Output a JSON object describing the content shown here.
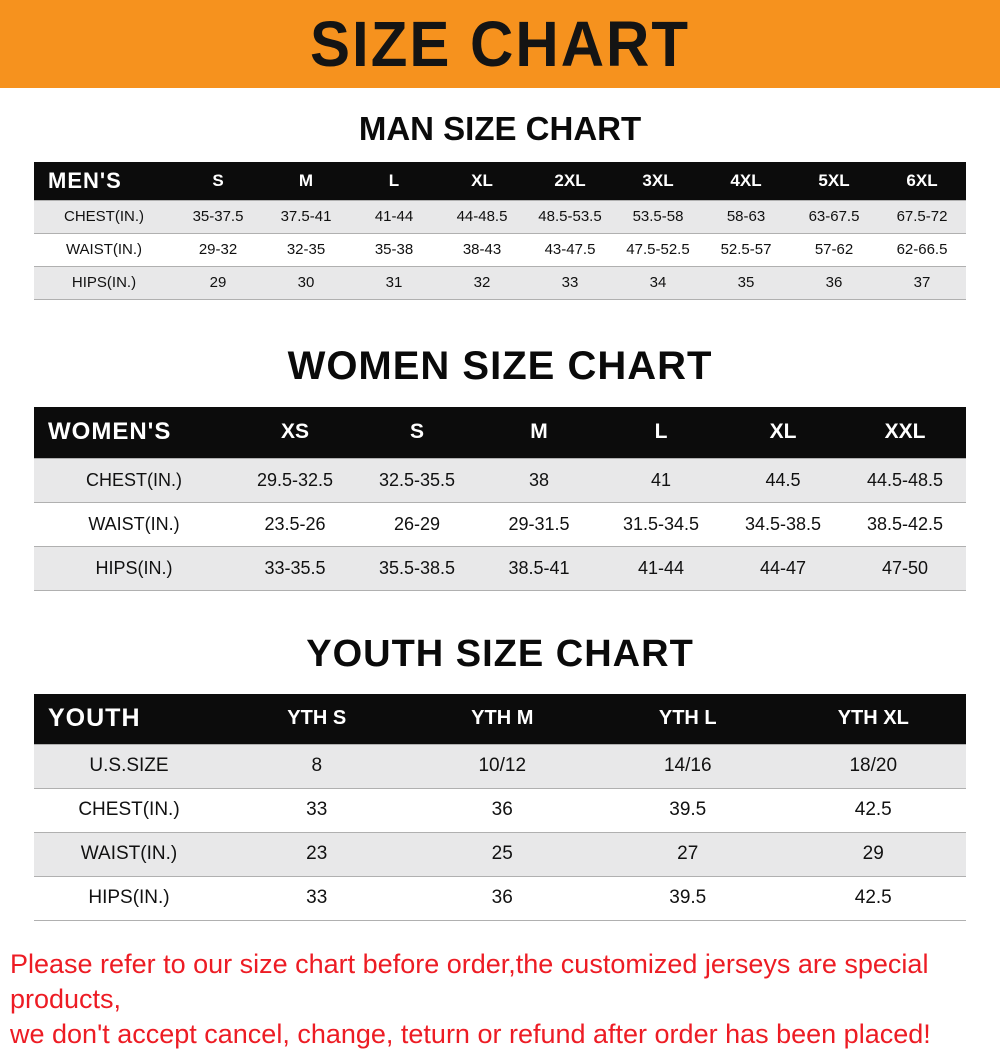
{
  "banner": {
    "title": "SIZE CHART",
    "bg_color": "#F6921E"
  },
  "chart_data": [
    {
      "type": "table",
      "title": "MAN SIZE CHART",
      "corner_label": "MEN'S",
      "columns": [
        "S",
        "M",
        "L",
        "XL",
        "2XL",
        "3XL",
        "4XL",
        "5XL",
        "6XL"
      ],
      "rows": [
        {
          "label": "CHEST(IN.)",
          "values": [
            "35-37.5",
            "37.5-41",
            "41-44",
            "44-48.5",
            "48.5-53.5",
            "53.5-58",
            "58-63",
            "63-67.5",
            "67.5-72"
          ]
        },
        {
          "label": "WAIST(IN.)",
          "values": [
            "29-32",
            "32-35",
            "35-38",
            "38-43",
            "43-47.5",
            "47.5-52.5",
            "52.5-57",
            "57-62",
            "62-66.5"
          ]
        },
        {
          "label": "HIPS(IN.)",
          "values": [
            "29",
            "30",
            "31",
            "32",
            "33",
            "34",
            "35",
            "36",
            "37"
          ]
        }
      ]
    },
    {
      "type": "table",
      "title": "WOMEN SIZE CHART",
      "corner_label": "WOMEN'S",
      "columns": [
        "XS",
        "S",
        "M",
        "L",
        "XL",
        "XXL"
      ],
      "rows": [
        {
          "label": "CHEST(IN.)",
          "values": [
            "29.5-32.5",
            "32.5-35.5",
            "38",
            "41",
            "44.5",
            "44.5-48.5"
          ]
        },
        {
          "label": "WAIST(IN.)",
          "values": [
            "23.5-26",
            "26-29",
            "29-31.5",
            "31.5-34.5",
            "34.5-38.5",
            "38.5-42.5"
          ]
        },
        {
          "label": "HIPS(IN.)",
          "values": [
            "33-35.5",
            "35.5-38.5",
            "38.5-41",
            "41-44",
            "44-47",
            "47-50"
          ]
        }
      ]
    },
    {
      "type": "table",
      "title": "YOUTH SIZE CHART",
      "corner_label": "YOUTH",
      "columns": [
        "YTH S",
        "YTH M",
        "YTH L",
        "YTH XL"
      ],
      "rows": [
        {
          "label": "U.S.SIZE",
          "values": [
            "8",
            "10/12",
            "14/16",
            "18/20"
          ]
        },
        {
          "label": "CHEST(IN.)",
          "values": [
            "33",
            "36",
            "39.5",
            "42.5"
          ]
        },
        {
          "label": "WAIST(IN.)",
          "values": [
            "23",
            "25",
            "27",
            "29"
          ]
        },
        {
          "label": "HIPS(IN.)",
          "values": [
            "33",
            "36",
            "39.5",
            "42.5"
          ]
        }
      ]
    }
  ],
  "footer": {
    "lines": [
      "Please refer to our size chart before order,the customized jerseys are special products,",
      "we don't accept cancel, change, teturn or refund after order has been placed!"
    ],
    "color": "#ed1c24"
  }
}
